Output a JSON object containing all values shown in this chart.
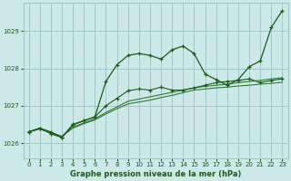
{
  "title": "Graphe pression niveau de la mer (hPa)",
  "bg_color": "#cce8e8",
  "grid_color": "#a0c8c8",
  "line_color_dark": "#1a5c1a",
  "line_color_med": "#2e7d2e",
  "xlim": [
    -0.5,
    23.5
  ],
  "ylim": [
    1025.6,
    1029.75
  ],
  "yticks": [
    1026,
    1027,
    1028,
    1029
  ],
  "xticks": [
    0,
    1,
    2,
    3,
    4,
    5,
    6,
    7,
    8,
    9,
    10,
    11,
    12,
    13,
    14,
    15,
    16,
    17,
    18,
    19,
    20,
    21,
    22,
    23
  ],
  "line1": {
    "x": [
      0,
      1,
      2,
      3,
      4,
      5,
      6,
      7,
      8,
      9,
      10,
      11,
      12,
      13,
      14,
      15,
      16,
      17,
      18,
      19,
      20,
      21,
      22,
      23
    ],
    "y": [
      1026.3,
      1026.4,
      1026.3,
      1026.15,
      1026.5,
      1026.6,
      1026.7,
      1027.65,
      1028.1,
      1028.35,
      1028.4,
      1028.35,
      1028.25,
      1028.5,
      1028.6,
      1028.4,
      1027.85,
      1027.7,
      1027.55,
      1027.7,
      1028.05,
      1028.2,
      1029.1,
      1029.55
    ]
  },
  "line2": {
    "x": [
      0,
      1,
      2,
      3,
      4,
      5,
      6,
      7,
      8,
      9,
      10,
      11,
      12,
      13,
      14,
      15,
      16,
      17,
      18,
      19,
      20,
      21,
      22,
      23
    ],
    "y": [
      1026.3,
      1026.38,
      1026.28,
      1026.18,
      1026.4,
      1026.52,
      1026.62,
      1026.78,
      1026.92,
      1027.05,
      1027.1,
      1027.15,
      1027.22,
      1027.28,
      1027.35,
      1027.42,
      1027.45,
      1027.48,
      1027.5,
      1027.53,
      1027.55,
      1027.58,
      1027.6,
      1027.63
    ]
  },
  "line3": {
    "x": [
      0,
      1,
      2,
      3,
      4,
      5,
      6,
      7,
      8,
      9,
      10,
      11,
      12,
      13,
      14,
      15,
      16,
      17,
      18,
      19,
      20,
      21,
      22,
      23
    ],
    "y": [
      1026.3,
      1026.38,
      1026.28,
      1026.18,
      1026.42,
      1026.54,
      1026.65,
      1026.82,
      1026.97,
      1027.12,
      1027.18,
      1027.24,
      1027.3,
      1027.36,
      1027.42,
      1027.48,
      1027.52,
      1027.55,
      1027.58,
      1027.62,
      1027.65,
      1027.68,
      1027.72,
      1027.75
    ]
  },
  "line4": {
    "x": [
      0,
      1,
      2,
      3,
      4,
      5,
      6,
      7,
      8,
      9,
      10,
      11,
      12,
      13,
      14,
      15,
      16,
      17,
      18,
      19,
      20,
      21,
      22,
      23
    ],
    "y": [
      1026.3,
      1026.4,
      1026.25,
      1026.15,
      1026.48,
      1026.6,
      1026.7,
      1027.0,
      1027.2,
      1027.4,
      1027.45,
      1027.42,
      1027.5,
      1027.42,
      1027.42,
      1027.48,
      1027.55,
      1027.62,
      1027.65,
      1027.68,
      1027.72,
      1027.62,
      1027.68,
      1027.72
    ]
  }
}
